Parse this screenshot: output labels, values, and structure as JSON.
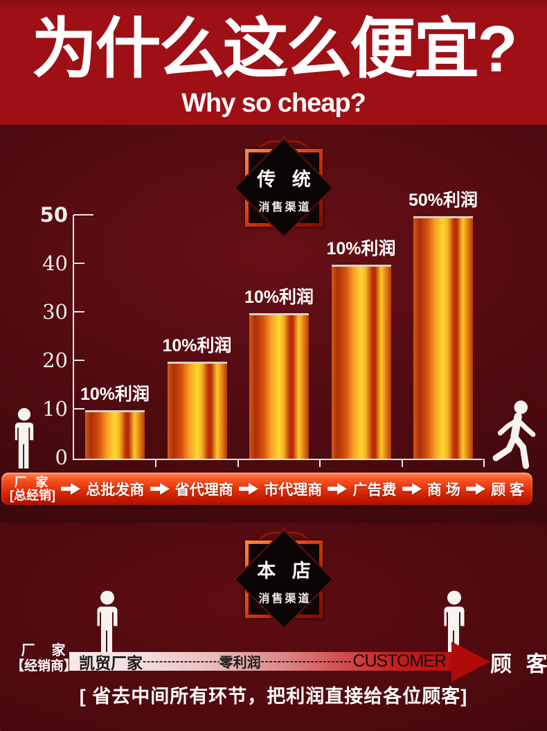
{
  "header": {
    "title": "为什么这么便宜?",
    "subtitle": "Why so cheap?"
  },
  "traditional_badge": {
    "line1": "传 统",
    "line2": "消售渠道"
  },
  "chart_data": {
    "type": "bar",
    "categories": [
      "总批发商",
      "省代理商",
      "市代理商",
      "广告费",
      "商场"
    ],
    "values": [
      10,
      20,
      30,
      40,
      50
    ],
    "bar_labels": [
      "10%利润",
      "10%利润",
      "10%利润",
      "10%利润",
      "50%利润"
    ],
    "y_ticks": [
      50,
      40,
      30,
      20,
      10,
      0
    ],
    "ylim": [
      0,
      50
    ],
    "xlabel": "",
    "ylabel": "",
    "grid": false,
    "legend": "none",
    "bar_gradient": [
      "#b03008",
      "#f89c22",
      "#ffd82e",
      "#c03008",
      "#ffc82a"
    ]
  },
  "traditional_flow": {
    "source_line1": "厂 家",
    "source_line2": "[总经销]",
    "steps": [
      "总批发商",
      "省代理商",
      "市代理商",
      "广告费",
      "商 场",
      "顾 客"
    ]
  },
  "shop_badge": {
    "line1": "本 店",
    "line2": "消售渠道"
  },
  "shop_flow": {
    "source_line1": "厂　家",
    "source_line2": "【经销商】",
    "bar_start": "凯贸厂家",
    "bar_dashes1": "--------------------",
    "bar_middle": "零利润",
    "bar_dashes2": "------------------------",
    "bar_end": "CUSTOMER",
    "target": "顾 客"
  },
  "caption": "[ 省去中间所有环节，把利润直接给各位顾客]",
  "colors": {
    "top_band": "#9e1016",
    "dark_background": "#4c0a0f",
    "banner_orange": "#e02a06",
    "bar_yellow": "#ffd82e",
    "bar_red": "#c03008",
    "shop_bar_red": "#bb0d0d",
    "text_white": "#ffffff",
    "shop_bar_text": "#1a1a1a"
  }
}
